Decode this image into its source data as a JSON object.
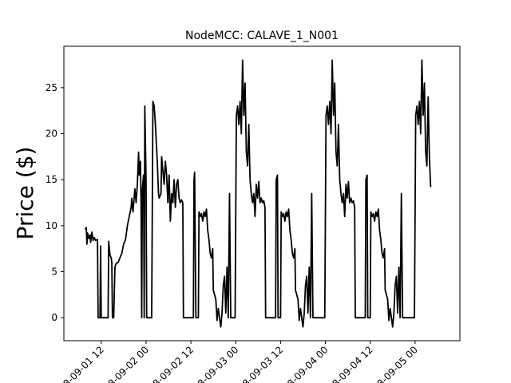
{
  "chart_data": {
    "type": "line",
    "title": "NodeMCC: CALAVE_1_N001",
    "xlabel": "",
    "ylabel": "Price ($)",
    "ylim": [
      -2.5,
      29.5
    ],
    "xlim": [
      "2018-09-01 02:00",
      "2018-09-05 12:00"
    ],
    "yticks": [
      0,
      5,
      10,
      15,
      20,
      25
    ],
    "xticks": [
      {
        "t": "2018-09-01 12:00",
        "label": "2018-09-01 12"
      },
      {
        "t": "2018-09-02 00:00",
        "label": "2018-09-02 00"
      },
      {
        "t": "2018-09-02 12:00",
        "label": "2018-09-02 12"
      },
      {
        "t": "2018-09-03 00:00",
        "label": "2018-09-03 00"
      },
      {
        "t": "2018-09-03 12:00",
        "label": "2018-09-03 12"
      },
      {
        "t": "2018-09-04 00:00",
        "label": "2018-09-04 00"
      },
      {
        "t": "2018-09-04 12:00",
        "label": "2018-09-04 12"
      },
      {
        "t": "2018-09-05 00:00",
        "label": "2018-09-05 00"
      }
    ],
    "grid": false,
    "series": [
      {
        "color": "#000000",
        "points": [
          [
            "2018-09-01 07:40",
            9.6
          ],
          [
            "2018-09-01 08:00",
            9.8
          ],
          [
            "2018-09-01 08:10",
            8.0
          ],
          [
            "2018-09-01 08:20",
            9.2
          ],
          [
            "2018-09-01 08:40",
            8.6
          ],
          [
            "2018-09-01 09:00",
            9.0
          ],
          [
            "2018-09-01 09:10",
            8.2
          ],
          [
            "2018-09-01 09:30",
            9.3
          ],
          [
            "2018-09-01 09:50",
            8.4
          ],
          [
            "2018-09-01 10:10",
            8.7
          ],
          [
            "2018-09-01 10:30",
            8.4
          ],
          [
            "2018-09-01 11:00",
            8.5
          ],
          [
            "2018-09-01 11:10",
            0.0
          ],
          [
            "2018-09-01 11:40",
            0.0
          ],
          [
            "2018-09-01 11:50",
            7.8
          ],
          [
            "2018-09-01 12:00",
            0.0
          ],
          [
            "2018-09-01 13:50",
            0.0
          ],
          [
            "2018-09-01 14:00",
            8.3
          ],
          [
            "2018-09-01 14:20",
            6.8
          ],
          [
            "2018-09-01 14:40",
            6.5
          ],
          [
            "2018-09-01 14:50",
            6.0
          ],
          [
            "2018-09-01 15:00",
            0.0
          ],
          [
            "2018-09-01 15:20",
            0.0
          ],
          [
            "2018-09-01 15:40",
            5.5
          ],
          [
            "2018-09-01 16:00",
            5.9
          ],
          [
            "2018-09-01 16:30",
            6.0
          ],
          [
            "2018-09-01 17:00",
            6.5
          ],
          [
            "2018-09-01 17:30",
            7.0
          ],
          [
            "2018-09-01 18:00",
            8.0
          ],
          [
            "2018-09-01 18:30",
            8.5
          ],
          [
            "2018-09-01 19:00",
            10.0
          ],
          [
            "2018-09-01 19:30",
            11.0
          ],
          [
            "2018-09-01 20:00",
            12.0
          ],
          [
            "2018-09-01 20:10",
            13.0
          ],
          [
            "2018-09-01 20:30",
            11.5
          ],
          [
            "2018-09-01 21:00",
            14.0
          ],
          [
            "2018-09-01 21:20",
            12.5
          ],
          [
            "2018-09-01 21:40",
            14.5
          ],
          [
            "2018-09-01 22:00",
            18.0
          ],
          [
            "2018-09-01 22:10",
            15.5
          ],
          [
            "2018-09-01 22:30",
            17.0
          ],
          [
            "2018-09-01 22:40",
            12.0
          ],
          [
            "2018-09-01 22:50",
            0.0
          ],
          [
            "2018-09-01 23:00",
            14.0
          ],
          [
            "2018-09-01 23:20",
            15.5
          ],
          [
            "2018-09-01 23:30",
            0.0
          ],
          [
            "2018-09-01 23:40",
            23.0
          ],
          [
            "2018-09-02 00:00",
            15.0
          ],
          [
            "2018-09-02 00:10",
            0.0
          ],
          [
            "2018-09-02 01:30",
            0.0
          ],
          [
            "2018-09-02 01:50",
            23.5
          ],
          [
            "2018-09-02 02:10",
            23.0
          ],
          [
            "2018-09-02 02:30",
            21.0
          ],
          [
            "2018-09-02 03:00",
            17.0
          ],
          [
            "2018-09-02 03:20",
            13.5
          ],
          [
            "2018-09-02 03:30",
            13.0
          ],
          [
            "2018-09-02 04:00",
            13.5
          ],
          [
            "2018-09-02 04:10",
            17.5
          ],
          [
            "2018-09-02 04:30",
            16.0
          ],
          [
            "2018-09-02 04:50",
            14.5
          ],
          [
            "2018-09-02 05:10",
            17.0
          ],
          [
            "2018-09-02 05:30",
            15.5
          ],
          [
            "2018-09-02 05:50",
            12.5
          ],
          [
            "2018-09-02 06:10",
            15.5
          ],
          [
            "2018-09-02 06:30",
            10.5
          ],
          [
            "2018-09-02 06:50",
            13.5
          ],
          [
            "2018-09-02 07:10",
            12.5
          ],
          [
            "2018-09-02 07:30",
            15.0
          ],
          [
            "2018-09-02 07:50",
            12.0
          ],
          [
            "2018-09-02 08:10",
            14.5
          ],
          [
            "2018-09-02 08:30",
            15.0
          ],
          [
            "2018-09-02 08:50",
            13.0
          ],
          [
            "2018-09-02 09:10",
            12.5
          ],
          [
            "2018-09-02 09:30",
            12.8
          ],
          [
            "2018-09-02 09:50",
            12.5
          ],
          [
            "2018-09-02 10:00",
            0.0
          ],
          [
            "2018-09-02 12:40",
            0.0
          ],
          [
            "2018-09-02 12:50",
            15.0
          ],
          [
            "2018-09-02 13:00",
            15.8
          ],
          [
            "2018-09-02 13:20",
            0.0
          ],
          [
            "2018-09-02 14:00",
            0.0
          ],
          [
            "2018-09-02 14:10",
            11.5
          ],
          [
            "2018-09-02 14:30",
            11.0
          ],
          [
            "2018-09-02 14:50",
            11.3
          ],
          [
            "2018-09-02 15:10",
            10.5
          ],
          [
            "2018-09-02 15:30",
            11.5
          ],
          [
            "2018-09-02 15:50",
            11.0
          ],
          [
            "2018-09-02 16:10",
            11.8
          ],
          [
            "2018-09-02 16:30",
            9.5
          ],
          [
            "2018-09-02 16:50",
            8.5
          ],
          [
            "2018-09-02 17:10",
            7.0
          ],
          [
            "2018-09-02 17:30",
            6.5
          ],
          [
            "2018-09-02 17:50",
            7.5
          ],
          [
            "2018-09-02 18:00",
            3.0
          ],
          [
            "2018-09-02 18:20",
            2.5
          ],
          [
            "2018-09-02 18:40",
            2.0
          ],
          [
            "2018-09-02 19:00",
            -0.3
          ],
          [
            "2018-09-02 19:20",
            1.0
          ],
          [
            "2018-09-02 19:40",
            0.0
          ],
          [
            "2018-09-02 20:00",
            -1.0
          ],
          [
            "2018-09-02 20:20",
            0.5
          ],
          [
            "2018-09-02 20:40",
            3.5
          ],
          [
            "2018-09-02 21:00",
            4.5
          ],
          [
            "2018-09-02 21:20",
            0.5
          ],
          [
            "2018-09-02 21:40",
            5.5
          ],
          [
            "2018-09-02 22:00",
            0.0
          ],
          [
            "2018-09-02 22:20",
            13.5
          ],
          [
            "2018-09-02 22:40",
            0.0
          ],
          [
            "2018-09-02 23:50",
            0.0
          ],
          [
            "2018-09-03 00:10",
            22.0
          ],
          [
            "2018-09-03 00:30",
            23.0
          ],
          [
            "2018-09-03 00:50",
            21.0
          ],
          [
            "2018-09-03 01:10",
            23.5
          ],
          [
            "2018-09-03 01:30",
            20.0
          ],
          [
            "2018-09-03 01:50",
            28.0
          ],
          [
            "2018-09-03 02:10",
            22.0
          ],
          [
            "2018-09-03 02:30",
            25.5
          ],
          [
            "2018-09-03 02:50",
            18.0
          ],
          [
            "2018-09-03 03:10",
            16.5
          ],
          [
            "2018-09-03 03:30",
            21.0
          ],
          [
            "2018-09-03 03:50",
            15.0
          ],
          [
            "2018-09-03 04:10",
            13.5
          ],
          [
            "2018-09-03 04:30",
            12.5
          ],
          [
            "2018-09-03 04:50",
            13.5
          ],
          [
            "2018-09-03 05:10",
            11.0
          ],
          [
            "2018-09-03 05:30",
            14.5
          ],
          [
            "2018-09-03 05:50",
            13.0
          ],
          [
            "2018-09-03 06:10",
            14.8
          ],
          [
            "2018-09-03 06:30",
            12.5
          ],
          [
            "2018-09-03 06:50",
            13.0
          ],
          [
            "2018-09-03 07:10",
            12.5
          ],
          [
            "2018-09-03 07:30",
            12.7
          ],
          [
            "2018-09-03 07:50",
            12.0
          ],
          [
            "2018-09-03 08:00",
            0.0
          ],
          [
            "2018-09-03 10:40",
            0.0
          ],
          [
            "2018-09-03 10:50",
            15.0
          ],
          [
            "2018-09-03 11:10",
            15.5
          ],
          [
            "2018-09-03 11:20",
            0.0
          ],
          [
            "2018-09-03 12:00",
            0.0
          ],
          [
            "2018-09-03 12:10",
            11.5
          ],
          [
            "2018-09-03 12:30",
            11.0
          ],
          [
            "2018-09-03 12:50",
            11.3
          ],
          [
            "2018-09-03 13:10",
            10.5
          ],
          [
            "2018-09-03 13:30",
            11.5
          ],
          [
            "2018-09-03 13:50",
            11.0
          ],
          [
            "2018-09-03 14:10",
            11.8
          ],
          [
            "2018-09-03 14:30",
            9.5
          ],
          [
            "2018-09-03 14:50",
            8.5
          ],
          [
            "2018-09-03 15:10",
            7.0
          ],
          [
            "2018-09-03 15:30",
            6.5
          ],
          [
            "2018-09-03 15:50",
            7.5
          ],
          [
            "2018-09-03 16:00",
            3.0
          ],
          [
            "2018-09-03 16:20",
            2.5
          ],
          [
            "2018-09-03 16:40",
            2.0
          ],
          [
            "2018-09-03 17:00",
            -0.3
          ],
          [
            "2018-09-03 17:20",
            1.0
          ],
          [
            "2018-09-03 17:40",
            0.0
          ],
          [
            "2018-09-03 18:00",
            -1.0
          ],
          [
            "2018-09-03 18:20",
            0.5
          ],
          [
            "2018-09-03 18:40",
            3.5
          ],
          [
            "2018-09-03 19:00",
            4.5
          ],
          [
            "2018-09-03 19:20",
            0.5
          ],
          [
            "2018-09-03 19:40",
            5.5
          ],
          [
            "2018-09-03 20:00",
            0.0
          ],
          [
            "2018-09-03 20:20",
            13.5
          ],
          [
            "2018-09-03 20:40",
            0.0
          ],
          [
            "2018-09-03 23:50",
            0.0
          ],
          [
            "2018-09-04 00:10",
            22.0
          ],
          [
            "2018-09-04 00:30",
            23.0
          ],
          [
            "2018-09-04 00:50",
            21.0
          ],
          [
            "2018-09-04 01:10",
            23.5
          ],
          [
            "2018-09-04 01:30",
            20.0
          ],
          [
            "2018-09-04 01:50",
            28.0
          ],
          [
            "2018-09-04 02:10",
            22.0
          ],
          [
            "2018-09-04 02:30",
            25.5
          ],
          [
            "2018-09-04 02:50",
            18.0
          ],
          [
            "2018-09-04 03:10",
            16.5
          ],
          [
            "2018-09-04 03:30",
            21.0
          ],
          [
            "2018-09-04 03:50",
            15.0
          ],
          [
            "2018-09-04 04:10",
            13.5
          ],
          [
            "2018-09-04 04:30",
            12.5
          ],
          [
            "2018-09-04 04:50",
            13.5
          ],
          [
            "2018-09-04 05:10",
            11.0
          ],
          [
            "2018-09-04 05:30",
            14.5
          ],
          [
            "2018-09-04 05:50",
            13.0
          ],
          [
            "2018-09-04 06:10",
            14.8
          ],
          [
            "2018-09-04 06:30",
            12.5
          ],
          [
            "2018-09-04 06:50",
            13.0
          ],
          [
            "2018-09-04 07:10",
            12.5
          ],
          [
            "2018-09-04 07:30",
            12.7
          ],
          [
            "2018-09-04 07:50",
            12.0
          ],
          [
            "2018-09-04 08:00",
            0.0
          ],
          [
            "2018-09-04 10:40",
            0.0
          ],
          [
            "2018-09-04 10:50",
            15.0
          ],
          [
            "2018-09-04 11:10",
            15.5
          ],
          [
            "2018-09-04 11:20",
            0.0
          ],
          [
            "2018-09-04 12:00",
            0.0
          ],
          [
            "2018-09-04 12:10",
            11.5
          ],
          [
            "2018-09-04 12:30",
            11.0
          ],
          [
            "2018-09-04 12:50",
            11.3
          ],
          [
            "2018-09-04 13:10",
            10.5
          ],
          [
            "2018-09-04 13:30",
            11.5
          ],
          [
            "2018-09-04 13:50",
            11.0
          ],
          [
            "2018-09-04 14:10",
            11.8
          ],
          [
            "2018-09-04 14:30",
            9.5
          ],
          [
            "2018-09-04 14:50",
            8.5
          ],
          [
            "2018-09-04 15:10",
            7.0
          ],
          [
            "2018-09-04 15:30",
            6.5
          ],
          [
            "2018-09-04 15:50",
            7.5
          ],
          [
            "2018-09-04 16:00",
            3.0
          ],
          [
            "2018-09-04 16:20",
            2.5
          ],
          [
            "2018-09-04 16:40",
            2.0
          ],
          [
            "2018-09-04 17:00",
            -0.3
          ],
          [
            "2018-09-04 17:20",
            1.0
          ],
          [
            "2018-09-04 17:40",
            0.0
          ],
          [
            "2018-09-04 18:00",
            -1.0
          ],
          [
            "2018-09-04 18:20",
            0.5
          ],
          [
            "2018-09-04 18:40",
            3.5
          ],
          [
            "2018-09-04 19:00",
            4.5
          ],
          [
            "2018-09-04 19:20",
            0.5
          ],
          [
            "2018-09-04 19:40",
            5.5
          ],
          [
            "2018-09-04 20:00",
            0.0
          ],
          [
            "2018-09-04 20:20",
            13.5
          ],
          [
            "2018-09-04 20:40",
            0.0
          ],
          [
            "2018-09-04 23:50",
            0.0
          ],
          [
            "2018-09-05 00:10",
            22.0
          ],
          [
            "2018-09-05 00:30",
            23.0
          ],
          [
            "2018-09-05 00:50",
            21.0
          ],
          [
            "2018-09-05 01:10",
            23.5
          ],
          [
            "2018-09-05 01:30",
            20.0
          ],
          [
            "2018-09-05 01:50",
            28.0
          ],
          [
            "2018-09-05 02:10",
            22.0
          ],
          [
            "2018-09-05 02:30",
            25.5
          ],
          [
            "2018-09-05 02:50",
            18.0
          ],
          [
            "2018-09-05 03:10",
            16.5
          ],
          [
            "2018-09-05 03:30",
            24.0
          ],
          [
            "2018-09-05 03:50",
            17.5
          ],
          [
            "2018-09-05 04:10",
            14.2
          ]
        ]
      }
    ]
  }
}
